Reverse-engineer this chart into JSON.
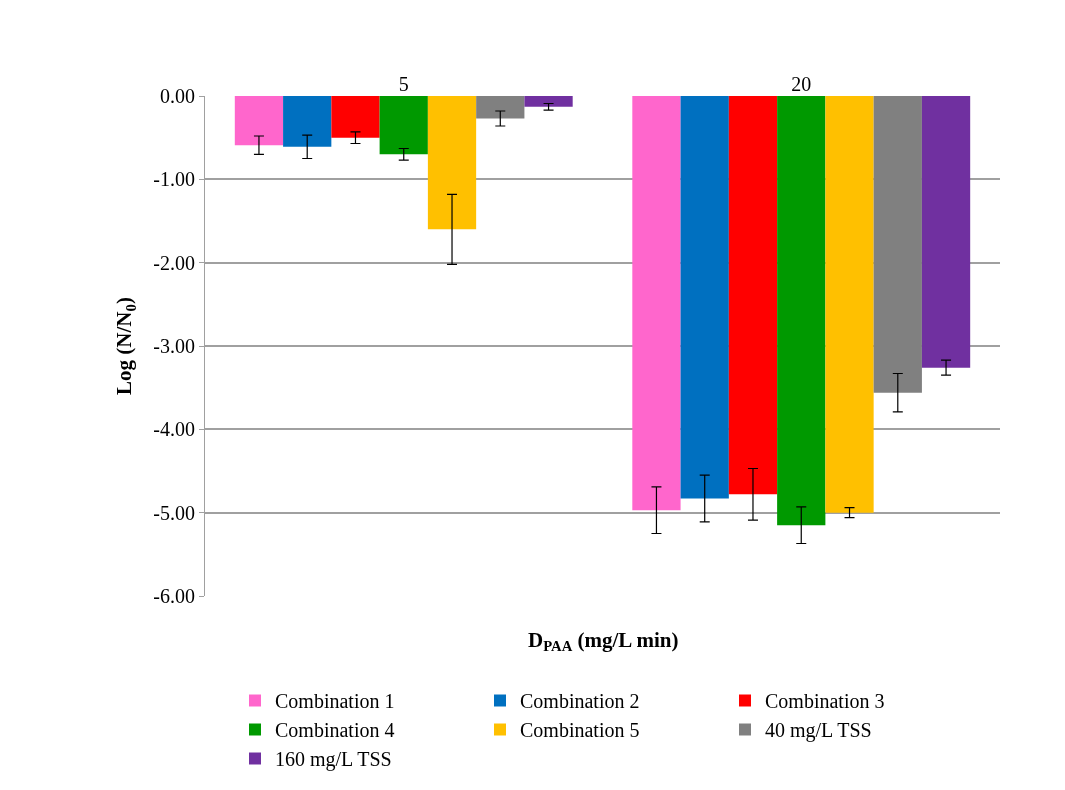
{
  "chart_data": {
    "type": "bar",
    "xlabel": "D$_{PAA}$ (mg/L min)",
    "ylabel": "Log (N/N$_{0}$)",
    "categories": [
      "5",
      "20"
    ],
    "series": [
      {
        "name": "Combination 1",
        "color": "#ff66cc",
        "values": [
          -0.59,
          -4.97
        ],
        "errors": [
          0.11,
          0.28
        ]
      },
      {
        "name": "Combination 2",
        "color": "#0070c0",
        "values": [
          -0.61,
          -4.83
        ],
        "errors": [
          0.14,
          0.28
        ]
      },
      {
        "name": "Combination 3",
        "color": "#ff0000",
        "values": [
          -0.5,
          -4.78
        ],
        "errors": [
          0.07,
          0.31
        ]
      },
      {
        "name": "Combination 4",
        "color": "#009900",
        "values": [
          -0.7,
          -5.15
        ],
        "errors": [
          0.07,
          0.22
        ]
      },
      {
        "name": "Combination 5",
        "color": "#ffc000",
        "values": [
          -1.6,
          -5.0
        ],
        "errors": [
          0.42,
          0.06
        ]
      },
      {
        "name": "40 mg/L TSS",
        "color": "#808080",
        "values": [
          -0.27,
          -3.56
        ],
        "errors": [
          0.09,
          0.23
        ]
      },
      {
        "name": "160 mg/L TSS",
        "color": "#7030a0",
        "values": [
          -0.13,
          -3.26
        ],
        "errors": [
          0.04,
          0.09
        ]
      }
    ],
    "ylim": [
      -6,
      0
    ],
    "yticks": [
      {
        "value": -6,
        "label": "-6.00"
      },
      {
        "value": -5,
        "label": "-5.00"
      },
      {
        "value": -4,
        "label": "-4.00"
      },
      {
        "value": -3,
        "label": "-3.00"
      },
      {
        "value": -2,
        "label": "-2.00"
      },
      {
        "value": -1,
        "label": "-1.00"
      },
      {
        "value": 0,
        "label": "0.00"
      }
    ],
    "grid": "y",
    "legend": "bottom"
  }
}
